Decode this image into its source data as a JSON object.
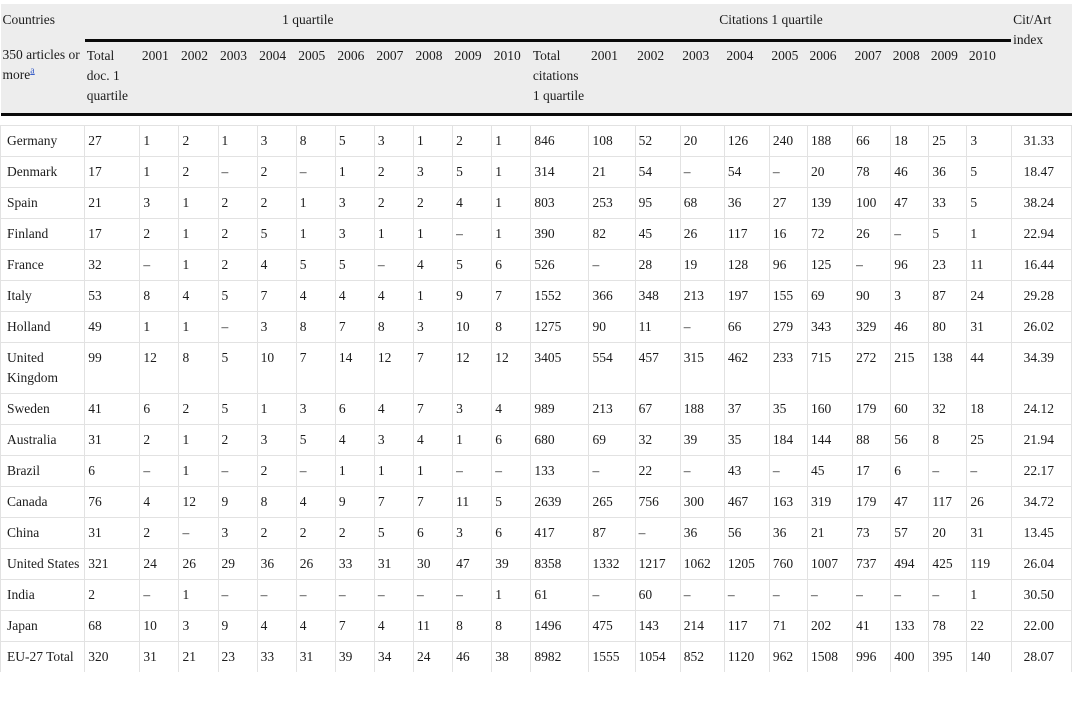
{
  "table": {
    "header": {
      "countries_label": "Countries",
      "quartile_group": "1 quartile",
      "citations_group": "Citations 1 quartile",
      "cit_art_label": "Cit/Art index",
      "articles_note": "350 articles or more",
      "footnote_marker": "a",
      "total_doc": "Total doc. 1 quartile",
      "total_citations": "Total citations 1 quartile",
      "doc_years": [
        "2001",
        "2002",
        "2003",
        "2004",
        "2005",
        "2006",
        "2007",
        "2008",
        "2009",
        "2010"
      ],
      "citation_years": [
        "2001",
        "2002",
        "2003",
        "2004",
        "2005",
        "2006",
        "2007",
        "2008",
        "2009",
        "2010"
      ]
    },
    "rows": [
      {
        "country": "Germany",
        "doc": [
          "27",
          "1",
          "2",
          "1",
          "3",
          "8",
          "5",
          "3",
          "1",
          "2",
          "1"
        ],
        "cit": [
          "846",
          "108",
          "52",
          "20",
          "126",
          "240",
          "188",
          "66",
          "18",
          "25",
          "3"
        ],
        "index": "31.33"
      },
      {
        "country": "Denmark",
        "doc": [
          "17",
          "1",
          "2",
          "–",
          "2",
          "–",
          "1",
          "2",
          "3",
          "5",
          "1"
        ],
        "cit": [
          "314",
          "21",
          "54",
          "–",
          "54",
          "–",
          "20",
          "78",
          "46",
          "36",
          "5"
        ],
        "index": "18.47"
      },
      {
        "country": "Spain",
        "doc": [
          "21",
          "3",
          "1",
          "2",
          "2",
          "1",
          "3",
          "2",
          "2",
          "4",
          "1"
        ],
        "cit": [
          "803",
          "253",
          "95",
          "68",
          "36",
          "27",
          "139",
          "100",
          "47",
          "33",
          "5"
        ],
        "index": "38.24"
      },
      {
        "country": "Finland",
        "doc": [
          "17",
          "2",
          "1",
          "2",
          "5",
          "1",
          "3",
          "1",
          "1",
          "–",
          "1"
        ],
        "cit": [
          "390",
          "82",
          "45",
          "26",
          "117",
          "16",
          "72",
          "26",
          "–",
          "5",
          "1"
        ],
        "index": "22.94"
      },
      {
        "country": "France",
        "doc": [
          "32",
          "–",
          "1",
          "2",
          "4",
          "5",
          "5",
          "–",
          "4",
          "5",
          "6"
        ],
        "cit": [
          "526",
          "–",
          "28",
          "19",
          "128",
          "96",
          "125",
          "–",
          "96",
          "23",
          "11"
        ],
        "index": "16.44"
      },
      {
        "country": "Italy",
        "doc": [
          "53",
          "8",
          "4",
          "5",
          "7",
          "4",
          "4",
          "4",
          "1",
          "9",
          "7"
        ],
        "cit": [
          "1552",
          "366",
          "348",
          "213",
          "197",
          "155",
          "69",
          "90",
          "3",
          "87",
          "24"
        ],
        "index": "29.28"
      },
      {
        "country": "Holland",
        "doc": [
          "49",
          "1",
          "1",
          "–",
          "3",
          "8",
          "7",
          "8",
          "3",
          "10",
          "8"
        ],
        "cit": [
          "1275",
          "90",
          "11",
          "–",
          "66",
          "279",
          "343",
          "329",
          "46",
          "80",
          "31"
        ],
        "index": "26.02"
      },
      {
        "country": "United Kingdom",
        "doc": [
          "99",
          "12",
          "8",
          "5",
          "10",
          "7",
          "14",
          "12",
          "7",
          "12",
          "12"
        ],
        "cit": [
          "3405",
          "554",
          "457",
          "315",
          "462",
          "233",
          "715",
          "272",
          "215",
          "138",
          "44"
        ],
        "index": "34.39"
      },
      {
        "country": "Sweden",
        "doc": [
          "41",
          "6",
          "2",
          "5",
          "1",
          "3",
          "6",
          "4",
          "7",
          "3",
          "4"
        ],
        "cit": [
          "989",
          "213",
          "67",
          "188",
          "37",
          "35",
          "160",
          "179",
          "60",
          "32",
          "18"
        ],
        "index": "24.12"
      },
      {
        "country": "Australia",
        "doc": [
          "31",
          "2",
          "1",
          "2",
          "3",
          "5",
          "4",
          "3",
          "4",
          "1",
          "6"
        ],
        "cit": [
          "680",
          "69",
          "32",
          "39",
          "35",
          "184",
          "144",
          "88",
          "56",
          "8",
          "25"
        ],
        "index": "21.94"
      },
      {
        "country": "Brazil",
        "doc": [
          "6",
          "–",
          "1",
          "–",
          "2",
          "–",
          "1",
          "1",
          "1",
          "–",
          "–"
        ],
        "cit": [
          "133",
          "–",
          "22",
          "–",
          "43",
          "–",
          "45",
          "17",
          "6",
          "–",
          "–"
        ],
        "index": "22.17"
      },
      {
        "country": "Canada",
        "doc": [
          "76",
          "4",
          "12",
          "9",
          "8",
          "4",
          "9",
          "7",
          "7",
          "11",
          "5"
        ],
        "cit": [
          "2639",
          "265",
          "756",
          "300",
          "467",
          "163",
          "319",
          "179",
          "47",
          "117",
          "26"
        ],
        "index": "34.72"
      },
      {
        "country": "China",
        "doc": [
          "31",
          "2",
          "–",
          "3",
          "2",
          "2",
          "2",
          "5",
          "6",
          "3",
          "6"
        ],
        "cit": [
          "417",
          "87",
          "–",
          "36",
          "56",
          "36",
          "21",
          "73",
          "57",
          "20",
          "31"
        ],
        "index": "13.45"
      },
      {
        "country": "United States",
        "doc": [
          "321",
          "24",
          "26",
          "29",
          "36",
          "26",
          "33",
          "31",
          "30",
          "47",
          "39"
        ],
        "cit": [
          "8358",
          "1332",
          "1217",
          "1062",
          "1205",
          "760",
          "1007",
          "737",
          "494",
          "425",
          "119"
        ],
        "index": "26.04"
      },
      {
        "country": "India",
        "doc": [
          "2",
          "–",
          "1",
          "–",
          "–",
          "–",
          "–",
          "–",
          "–",
          "–",
          "1"
        ],
        "cit": [
          "61",
          "–",
          "60",
          "–",
          "–",
          "–",
          "–",
          "–",
          "–",
          "–",
          "1"
        ],
        "index": "30.50"
      },
      {
        "country": "Japan",
        "doc": [
          "68",
          "10",
          "3",
          "9",
          "4",
          "4",
          "7",
          "4",
          "11",
          "8",
          "8"
        ],
        "cit": [
          "1496",
          "475",
          "143",
          "214",
          "117",
          "71",
          "202",
          "41",
          "133",
          "78",
          "22"
        ],
        "index": "22.00"
      },
      {
        "country": "EU-27 Total",
        "doc": [
          "320",
          "31",
          "21",
          "23",
          "33",
          "31",
          "39",
          "34",
          "24",
          "46",
          "38"
        ],
        "cit": [
          "8982",
          "1555",
          "1054",
          "852",
          "1120",
          "962",
          "1508",
          "996",
          "400",
          "395",
          "140"
        ],
        "index": "28.07"
      }
    ],
    "missing_value_symbol": "–"
  },
  "colors": {
    "header_background": "#ededed",
    "thick_rule": "#0a0a0a",
    "cell_border": "#e2e2e2",
    "footnote_link": "#3a5fc8",
    "text": "#1c1c1c"
  }
}
